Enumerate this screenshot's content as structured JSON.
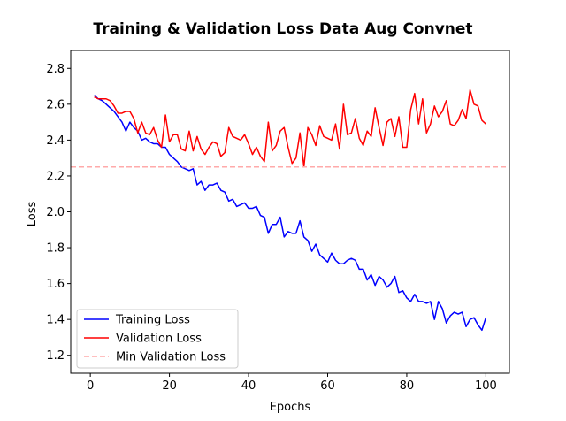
{
  "chart_data": {
    "type": "line",
    "title": "Training & Validation Loss Data Aug Convnet",
    "xlabel": "Epochs",
    "ylabel": "Loss",
    "xlim": [
      -4.95,
      105.95
    ],
    "ylim": [
      1.1,
      2.9
    ],
    "xticks": [
      0,
      20,
      40,
      60,
      80,
      100
    ],
    "yticks": [
      1.2,
      1.4,
      1.6,
      1.8,
      2.0,
      2.2,
      2.4,
      2.6,
      2.8
    ],
    "xtick_labels": [
      "0",
      "20",
      "40",
      "60",
      "80",
      "100"
    ],
    "ytick_labels": [
      "1.2",
      "1.4",
      "1.6",
      "1.8",
      "2.0",
      "2.2",
      "2.4",
      "2.6",
      "2.8"
    ],
    "grid": false,
    "legend_position": "lower-left",
    "x": [
      1,
      2,
      3,
      4,
      5,
      6,
      7,
      8,
      9,
      10,
      11,
      12,
      13,
      14,
      15,
      16,
      17,
      18,
      19,
      20,
      21,
      22,
      23,
      24,
      25,
      26,
      27,
      28,
      29,
      30,
      31,
      32,
      33,
      34,
      35,
      36,
      37,
      38,
      39,
      40,
      41,
      42,
      43,
      44,
      45,
      46,
      47,
      48,
      49,
      50,
      51,
      52,
      53,
      54,
      55,
      56,
      57,
      58,
      59,
      60,
      61,
      62,
      63,
      64,
      65,
      66,
      67,
      68,
      69,
      70,
      71,
      72,
      73,
      74,
      75,
      76,
      77,
      78,
      79,
      80,
      81,
      82,
      83,
      84,
      85,
      86,
      87,
      88,
      89,
      90,
      91,
      92,
      93,
      94,
      95,
      96,
      97,
      98,
      99,
      100
    ],
    "series": [
      {
        "name": "Training Loss",
        "color": "#0000ff",
        "style": "solid",
        "values": [
          2.65,
          2.63,
          2.62,
          2.6,
          2.58,
          2.56,
          2.53,
          2.5,
          2.45,
          2.5,
          2.47,
          2.45,
          2.4,
          2.41,
          2.39,
          2.38,
          2.38,
          2.36,
          2.36,
          2.32,
          2.3,
          2.28,
          2.25,
          2.24,
          2.23,
          2.24,
          2.15,
          2.17,
          2.12,
          2.15,
          2.15,
          2.16,
          2.12,
          2.11,
          2.06,
          2.07,
          2.03,
          2.04,
          2.05,
          2.02,
          2.02,
          2.03,
          1.98,
          1.97,
          1.88,
          1.93,
          1.93,
          1.97,
          1.86,
          1.89,
          1.88,
          1.88,
          1.95,
          1.86,
          1.84,
          1.78,
          1.82,
          1.76,
          1.74,
          1.72,
          1.77,
          1.73,
          1.71,
          1.71,
          1.73,
          1.74,
          1.73,
          1.68,
          1.68,
          1.62,
          1.65,
          1.59,
          1.64,
          1.62,
          1.58,
          1.6,
          1.64,
          1.55,
          1.56,
          1.52,
          1.5,
          1.54,
          1.5,
          1.5,
          1.49,
          1.5,
          1.4,
          1.5,
          1.46,
          1.38,
          1.42,
          1.44,
          1.43,
          1.44,
          1.36,
          1.4,
          1.41,
          1.37,
          1.34,
          1.41
        ]
      },
      {
        "name": "Validation Loss",
        "color": "#ff0000",
        "style": "solid",
        "values": [
          2.64,
          2.63,
          2.63,
          2.63,
          2.62,
          2.59,
          2.55,
          2.55,
          2.56,
          2.56,
          2.52,
          2.44,
          2.5,
          2.44,
          2.43,
          2.47,
          2.4,
          2.36,
          2.54,
          2.39,
          2.43,
          2.43,
          2.35,
          2.34,
          2.45,
          2.34,
          2.42,
          2.35,
          2.32,
          2.36,
          2.39,
          2.38,
          2.31,
          2.33,
          2.47,
          2.42,
          2.41,
          2.4,
          2.43,
          2.38,
          2.32,
          2.36,
          2.31,
          2.28,
          2.5,
          2.34,
          2.37,
          2.45,
          2.47,
          2.36,
          2.27,
          2.3,
          2.44,
          2.25,
          2.47,
          2.43,
          2.37,
          2.48,
          2.42,
          2.41,
          2.4,
          2.49,
          2.35,
          2.6,
          2.43,
          2.44,
          2.52,
          2.41,
          2.37,
          2.45,
          2.42,
          2.58,
          2.47,
          2.37,
          2.5,
          2.52,
          2.42,
          2.53,
          2.36,
          2.36,
          2.57,
          2.66,
          2.49,
          2.63,
          2.44,
          2.49,
          2.59,
          2.53,
          2.56,
          2.62,
          2.49,
          2.48,
          2.51,
          2.57,
          2.52,
          2.68,
          2.6,
          2.59,
          2.51,
          2.49
        ]
      },
      {
        "name": "Min Validation Loss",
        "color": "#ffaaaa",
        "style": "dashed",
        "type": "hline",
        "value": 2.25
      }
    ]
  }
}
